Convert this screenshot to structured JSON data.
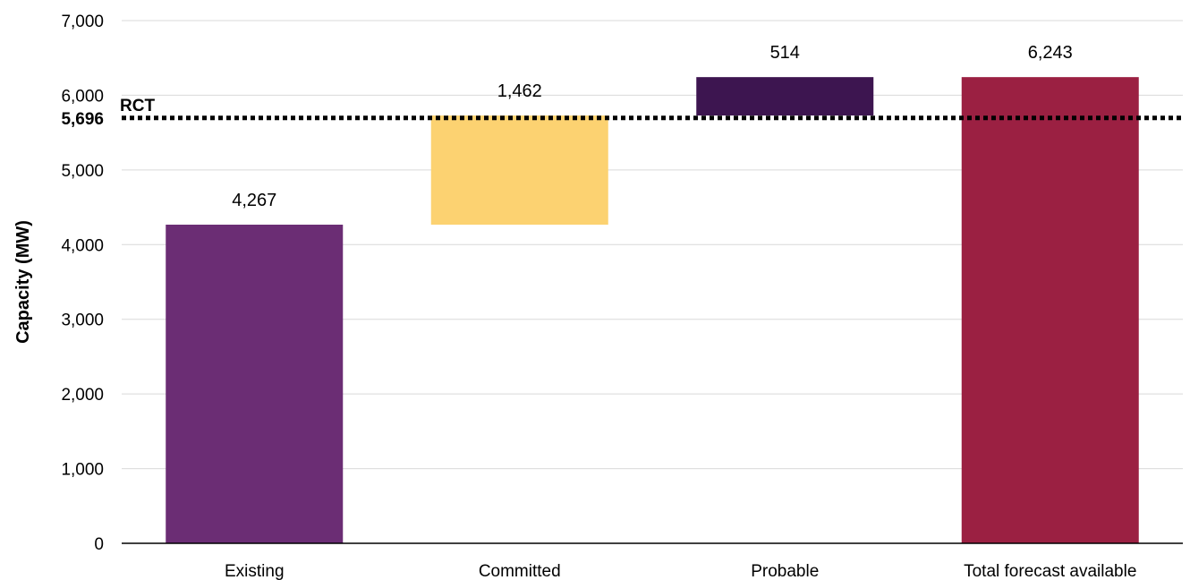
{
  "chart_data": {
    "type": "bar",
    "subtype": "waterfall",
    "categories": [
      "Existing",
      "Committed",
      "Probable",
      "Total forecast available"
    ],
    "values": [
      4267,
      1462,
      514,
      6243
    ],
    "value_labels": [
      "4,267",
      "1,462",
      "514",
      "6,243"
    ],
    "bar_kinds": [
      "total",
      "increment",
      "increment",
      "total"
    ],
    "colors": [
      "#6B2D74",
      "#FCD271",
      "#3D1550",
      "#9B2042"
    ],
    "ylabel": "Capacity (MW)",
    "ylim": [
      0,
      7000
    ],
    "yticks": [
      0,
      1000,
      2000,
      3000,
      4000,
      5000,
      6000,
      7000
    ],
    "ytick_labels": [
      "0",
      "1,000",
      "2,000",
      "3,000",
      "4,000",
      "5,000",
      "6,000",
      "7,000"
    ],
    "grid": true,
    "reference_line": {
      "name": "RCT",
      "value": 5696,
      "label": "5,696",
      "style": "dotted"
    }
  }
}
